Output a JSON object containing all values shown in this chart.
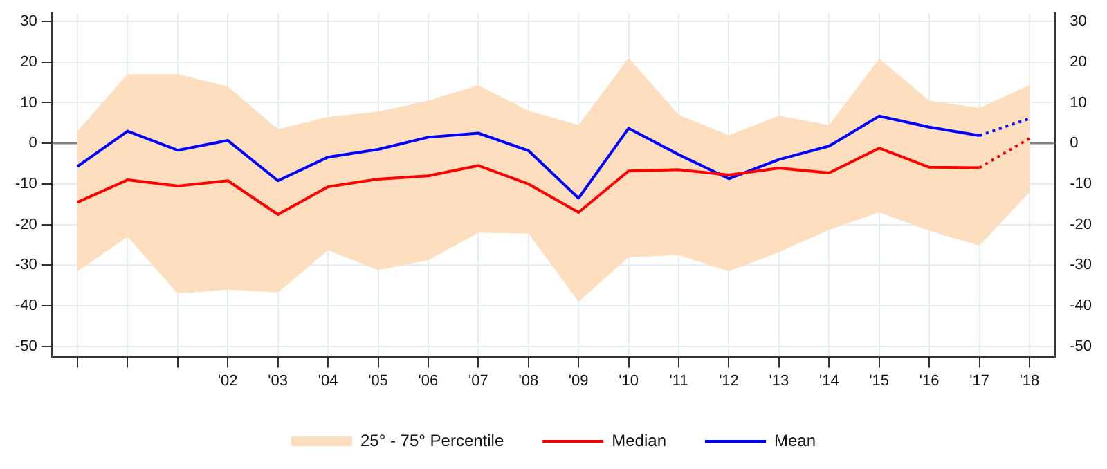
{
  "chart_data": {
    "type": "line",
    "categories": [
      null,
      null,
      null,
      "'02",
      "'03",
      "'04",
      "'05",
      "'06",
      "'07",
      "'08",
      "'09",
      "'10",
      "'11",
      "'12",
      "'13",
      "'14",
      "'15",
      "'16",
      "'17",
      "'18"
    ],
    "series": [
      {
        "name": "25° - 75° Percentile",
        "type": "area",
        "color": "#fddfc0",
        "lower": [
          -31.5,
          -23,
          -37,
          -36,
          -36.7,
          -26.3,
          -31.2,
          -28.8,
          -22,
          -22.2,
          -39,
          -28,
          -27.5,
          -31.5,
          -26.8,
          -21.3,
          -17,
          -21.5,
          -25.2,
          -12
        ],
        "upper": [
          3,
          17,
          17,
          14,
          3.5,
          6.5,
          7.8,
          10.5,
          14.3,
          8,
          4.5,
          21,
          7,
          2,
          6.8,
          4.5,
          20.8,
          10.5,
          8.7,
          14.3
        ],
        "values": [
          null,
          null,
          null,
          null,
          null,
          null,
          null,
          null,
          null,
          null,
          null,
          null,
          null,
          null,
          null,
          null,
          null,
          null,
          null,
          null
        ]
      },
      {
        "name": "Median",
        "type": "line",
        "color": "#ff0000",
        "values": [
          -14.5,
          -9,
          -10.5,
          -9.2,
          -17.5,
          -10.7,
          -8.8,
          -8,
          -5.5,
          -10,
          -17,
          -6.8,
          -6.5,
          -7.8,
          -6.1,
          -7.3,
          -1.2,
          -5.9,
          -6,
          null
        ]
      },
      {
        "name": "Mean",
        "type": "line",
        "color": "#0000ff",
        "values": [
          -5.7,
          3,
          -1.7,
          0.7,
          -9.2,
          -3.4,
          -1.5,
          1.5,
          2.5,
          -1.8,
          -13.5,
          3.7,
          -2.8,
          -8.7,
          -4,
          -0.7,
          6.7,
          4,
          1.9,
          null
        ]
      },
      {
        "type": "line",
        "color": "#ff0000",
        "line_style": "dotted",
        "values": [
          null,
          null,
          null,
          null,
          null,
          null,
          null,
          null,
          null,
          null,
          null,
          null,
          null,
          null,
          null,
          null,
          null,
          null,
          -6,
          1.2
        ]
      },
      {
        "type": "line",
        "color": "#0000ff",
        "line_style": "dotted",
        "values": [
          null,
          null,
          null,
          null,
          null,
          null,
          null,
          null,
          null,
          null,
          null,
          null,
          null,
          null,
          null,
          null,
          null,
          null,
          1.9,
          6.1
        ]
      }
    ],
    "ylim": [
      -52.5,
      32
    ],
    "yticks": [
      -50,
      -40,
      -30,
      -20,
      -10,
      0,
      10,
      20,
      30
    ],
    "y2lim": [
      -52.5,
      32
    ],
    "y2ticks": [
      -50,
      -40,
      -30,
      -20,
      -10,
      0,
      10,
      20,
      30
    ],
    "ref_lines": [
      {
        "axis": "y",
        "value": 0,
        "color": "#808080"
      }
    ],
    "grid": true,
    "legend": "bottom",
    "marker": "none",
    "line_style": "solid"
  }
}
